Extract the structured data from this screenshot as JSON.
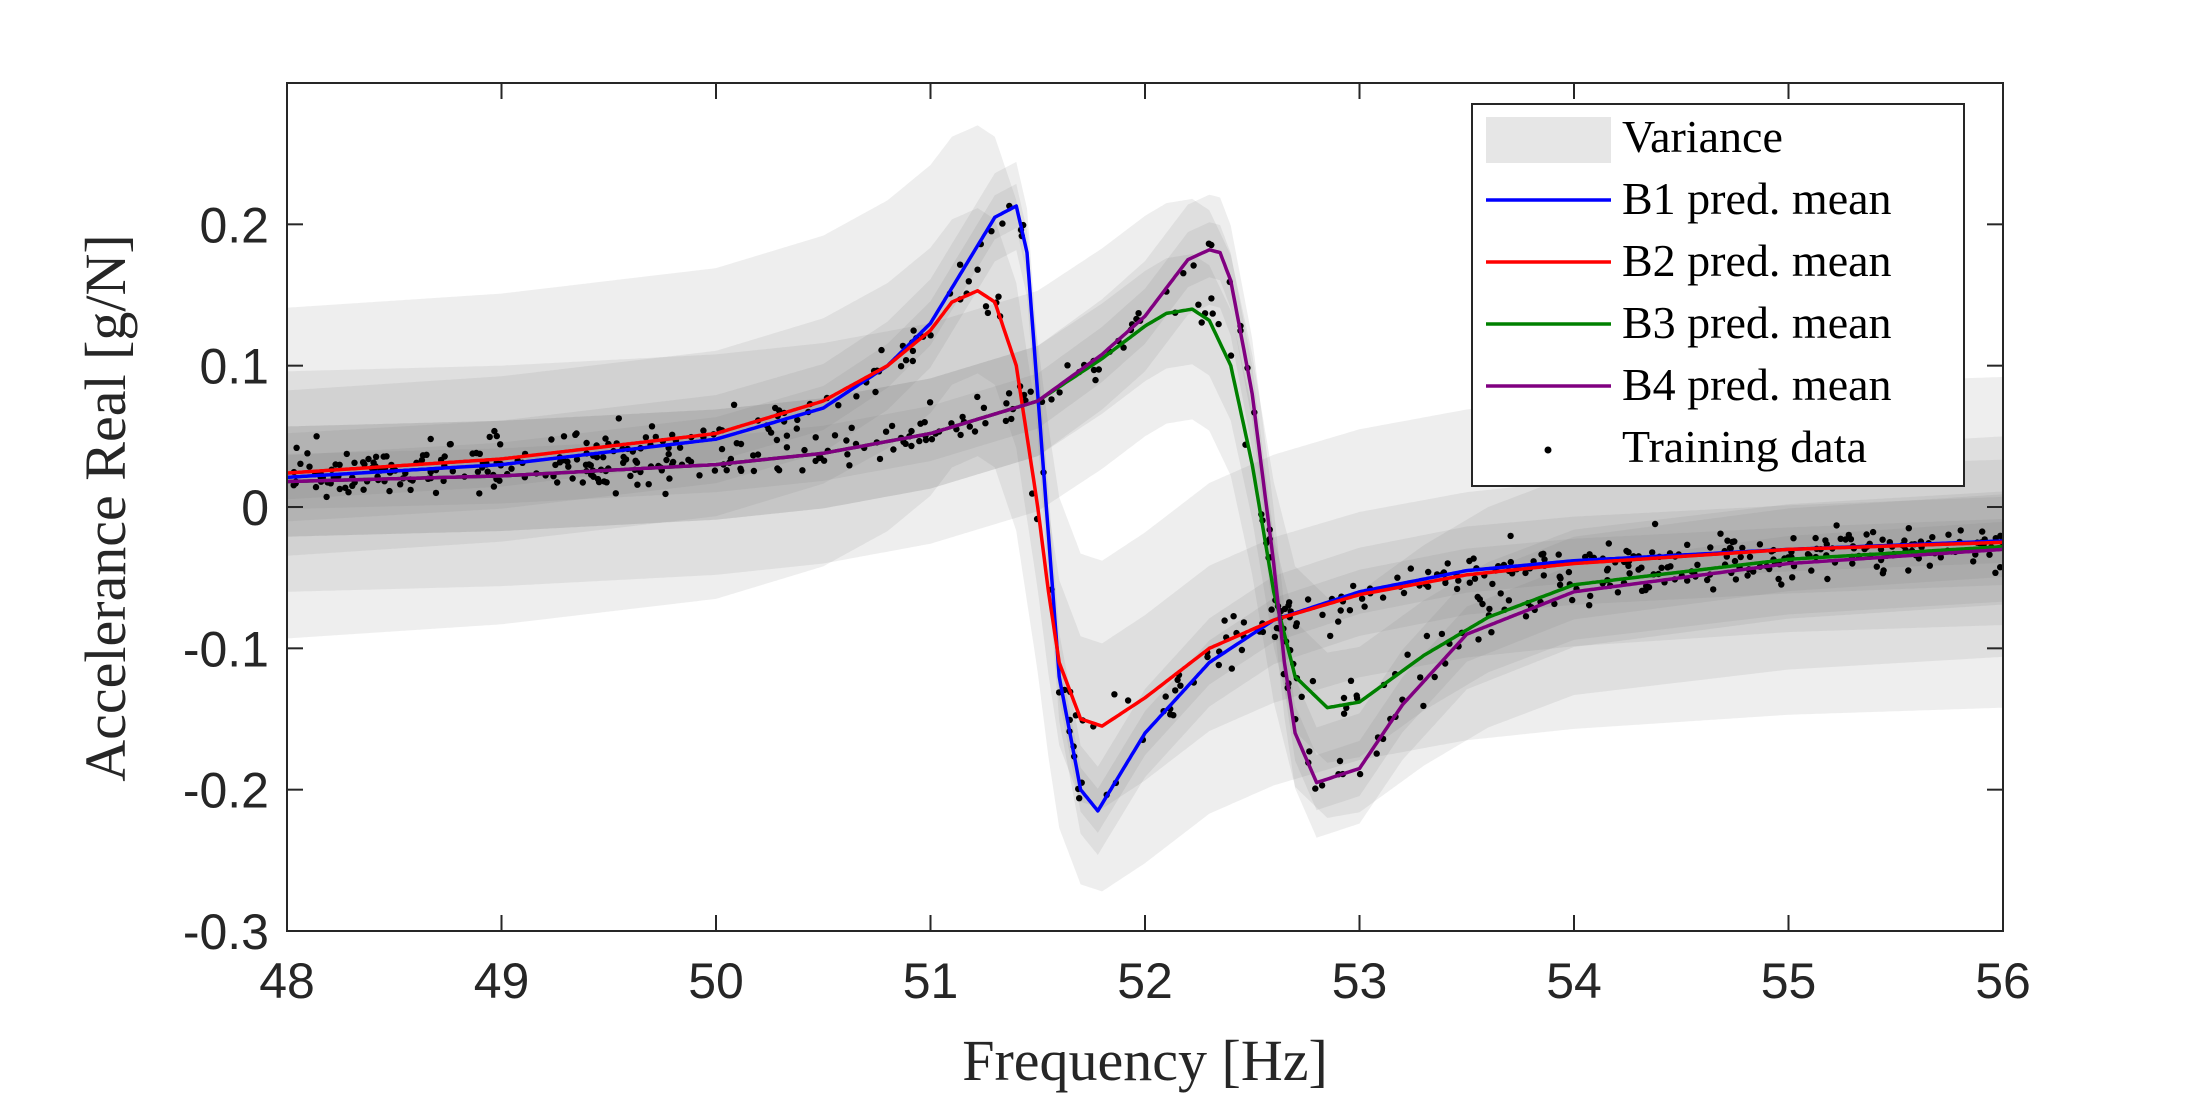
{
  "chart_data": {
    "type": "line",
    "title": "",
    "xlabel": "Frequency [Hz]",
    "ylabel": "Accelerance Real [g/N]",
    "xlim": [
      48,
      56
    ],
    "ylim": [
      -0.3,
      0.3
    ],
    "xticks": [
      48,
      49,
      50,
      51,
      52,
      53,
      54,
      55,
      56
    ],
    "xtick_labels": [
      "48",
      "49",
      "50",
      "51",
      "52",
      "53",
      "54",
      "55",
      "56"
    ],
    "yticks": [
      -0.3,
      -0.2,
      -0.1,
      0,
      0.1,
      0.2
    ],
    "ytick_labels": [
      "-0.3",
      "-0.2",
      "-0.1",
      "0",
      "0.1",
      "0.2"
    ],
    "grid": false,
    "legend_position": "top-right",
    "legend": [
      {
        "label": "Variance",
        "kind": "band"
      },
      {
        "label": "B1 pred. mean",
        "kind": "line"
      },
      {
        "label": "B2 pred. mean",
        "kind": "line"
      },
      {
        "label": "B3 pred. mean",
        "kind": "line"
      },
      {
        "label": "B4 pred. mean",
        "kind": "line"
      },
      {
        "label": "Training data",
        "kind": "marker"
      }
    ],
    "series": [
      {
        "name": "B1 pred. mean",
        "color": "#0000ff",
        "x": [
          48,
          49,
          50,
          50.5,
          50.8,
          51.0,
          51.2,
          51.3,
          51.4,
          51.45,
          51.5,
          51.55,
          51.6,
          51.7,
          51.78,
          52.0,
          52.3,
          52.6,
          53.0,
          53.5,
          54,
          55,
          56
        ],
        "y": [
          0.021,
          0.03,
          0.048,
          0.07,
          0.1,
          0.13,
          0.18,
          0.205,
          0.213,
          0.18,
          0.08,
          -0.02,
          -0.12,
          -0.2,
          -0.215,
          -0.16,
          -0.11,
          -0.08,
          -0.06,
          -0.045,
          -0.038,
          -0.03,
          -0.024
        ],
        "band": 0.012
      },
      {
        "name": "B2 pred. mean",
        "color": "#ff0000",
        "x": [
          48,
          49,
          50,
          50.5,
          50.8,
          51.0,
          51.1,
          51.22,
          51.3,
          51.4,
          51.5,
          51.55,
          51.6,
          51.7,
          51.8,
          52.0,
          52.3,
          52.6,
          53.0,
          53.5,
          54,
          55,
          56
        ],
        "y": [
          0.024,
          0.034,
          0.052,
          0.075,
          0.1,
          0.125,
          0.145,
          0.153,
          0.145,
          0.1,
          0.0,
          -0.06,
          -0.11,
          -0.15,
          -0.155,
          -0.135,
          -0.1,
          -0.08,
          -0.062,
          -0.048,
          -0.04,
          -0.03,
          -0.025
        ],
        "band": 0.045
      },
      {
        "name": "B3 pred. mean",
        "color": "#008000",
        "x": [
          48,
          49,
          50,
          50.5,
          51,
          51.5,
          51.8,
          52.0,
          52.1,
          52.22,
          52.3,
          52.4,
          52.5,
          52.6,
          52.7,
          52.85,
          53.0,
          53.3,
          53.6,
          54,
          55,
          56
        ],
        "y": [
          0.018,
          0.022,
          0.03,
          0.038,
          0.052,
          0.075,
          0.105,
          0.128,
          0.137,
          0.14,
          0.132,
          0.1,
          0.03,
          -0.06,
          -0.12,
          -0.142,
          -0.138,
          -0.105,
          -0.078,
          -0.055,
          -0.037,
          -0.028
        ],
        "band": 0.03
      },
      {
        "name": "B4 pred. mean",
        "color": "#800080",
        "x": [
          48,
          49,
          50,
          50.5,
          51,
          51.5,
          51.8,
          52.0,
          52.1,
          52.2,
          52.3,
          52.35,
          52.4,
          52.5,
          52.55,
          52.6,
          52.65,
          52.7,
          52.8,
          53.0,
          53.2,
          53.5,
          54,
          55,
          56
        ],
        "y": [
          0.018,
          0.022,
          0.03,
          0.038,
          0.052,
          0.075,
          0.108,
          0.135,
          0.155,
          0.175,
          0.182,
          0.18,
          0.16,
          0.08,
          0.02,
          -0.04,
          -0.11,
          -0.16,
          -0.195,
          -0.185,
          -0.14,
          -0.09,
          -0.06,
          -0.04,
          -0.03
        ],
        "band": 0.015
      }
    ],
    "training_data_note": "scattered noisy samples around the four predicted means"
  },
  "colors": {
    "variance_band": "#7f7f7f",
    "variance_legend": "#e6e6e6",
    "axis": "#262626",
    "marker": "#000000"
  }
}
